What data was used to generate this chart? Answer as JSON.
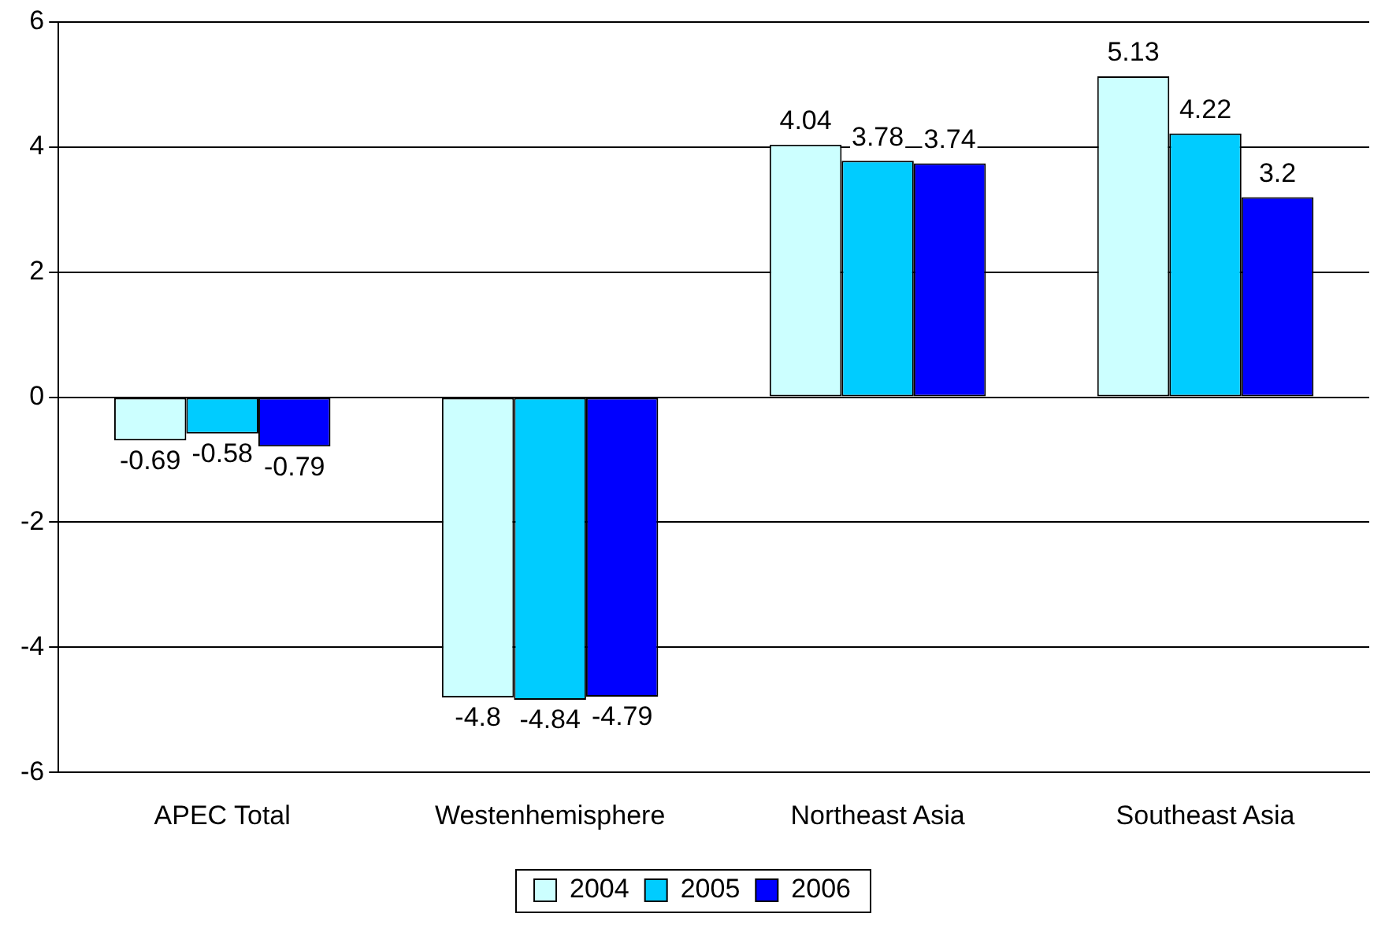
{
  "chart_data": {
    "type": "bar",
    "categories": [
      "APEC Total",
      "Westenhemisphere",
      "Northeast Asia",
      "Southeast Asia"
    ],
    "series": [
      {
        "name": "2004",
        "color": "#ccffff",
        "values": [
          -0.69,
          -4.8,
          4.04,
          5.13
        ]
      },
      {
        "name": "2005",
        "color": "#00ccff",
        "values": [
          -0.58,
          -4.84,
          3.78,
          4.22
        ]
      },
      {
        "name": "2006",
        "color": "#0000ff",
        "values": [
          -0.79,
          -4.79,
          3.74,
          3.2
        ]
      }
    ],
    "ylim": [
      -6,
      6
    ],
    "yticks": [
      -6,
      -4,
      -2,
      0,
      2,
      4,
      6
    ],
    "grid": "y",
    "legend": "bottom",
    "data_labels": true
  }
}
